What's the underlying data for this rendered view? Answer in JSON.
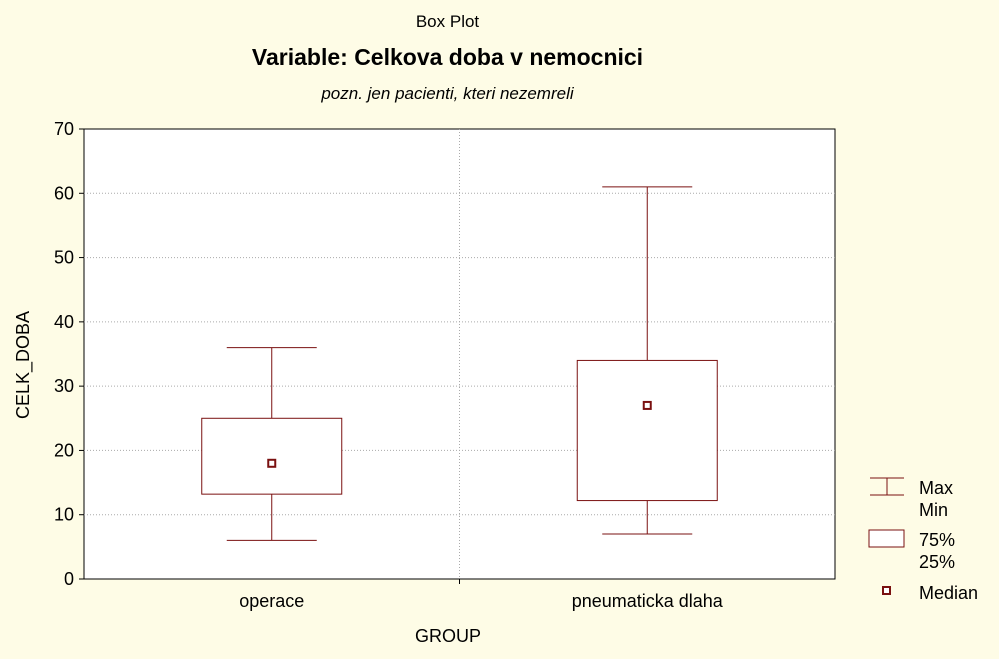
{
  "chart_data": {
    "type": "box",
    "title": "Box Plot",
    "heading": "Variable: Celkova doba v nemocnici",
    "subtitle": "pozn. jen pacienti, kteri nezemreli",
    "xlabel": "GROUP",
    "ylabel": "CELK_DOBA",
    "ylim": [
      0,
      70
    ],
    "yticks": [
      0,
      10,
      20,
      30,
      40,
      50,
      60,
      70
    ],
    "grid": true,
    "legend_position": "right",
    "categories": [
      "operace",
      "pneumaticka dlaha"
    ],
    "boxes": [
      {
        "category": "operace",
        "min": 6,
        "q1": 13.2,
        "median": 18,
        "q3": 25,
        "max": 36
      },
      {
        "category": "pneumaticka dlaha",
        "min": 7,
        "q1": 12.2,
        "median": 27,
        "q3": 34,
        "max": 61
      }
    ],
    "legend": {
      "whisker_top": "Max",
      "whisker_bottom": "Min",
      "box_top": "75%",
      "box_bottom": "25%",
      "median": "Median"
    },
    "colors": {
      "background": "#fefce6",
      "plot_background": "#ffffff",
      "box_stroke": "#7a1010",
      "grid": "#aaaaaa"
    }
  }
}
